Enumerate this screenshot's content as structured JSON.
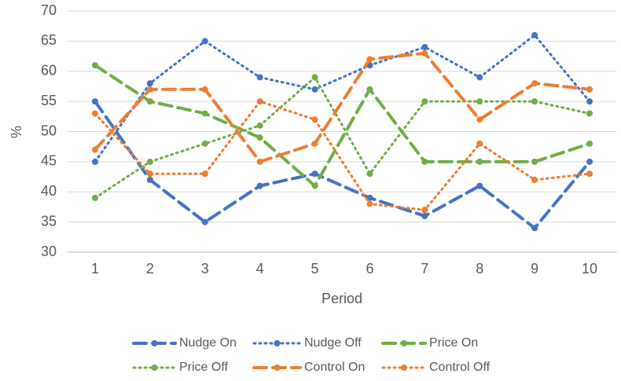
{
  "chart_data": {
    "type": "line",
    "x_label": "Period",
    "y_label": "%",
    "categories": [
      "1",
      "2",
      "3",
      "4",
      "5",
      "6",
      "7",
      "8",
      "9",
      "10"
    ],
    "series": [
      {
        "name": "Nudge On",
        "color": "#4472c4",
        "style": "dash",
        "values": [
          55,
          42,
          35,
          41,
          43,
          39,
          36,
          41,
          34,
          45
        ]
      },
      {
        "name": "Nudge Off",
        "color": "#4472c4",
        "style": "dot",
        "values": [
          45,
          58,
          65,
          59,
          57,
          61,
          64,
          59,
          66,
          55
        ]
      },
      {
        "name": "Price On",
        "color": "#70ad47",
        "style": "dash",
        "values": [
          61,
          55,
          53,
          49,
          41,
          57,
          45,
          45,
          45,
          48
        ]
      },
      {
        "name": "Price Off",
        "color": "#70ad47",
        "style": "dot",
        "values": [
          39,
          45,
          48,
          51,
          59,
          43,
          55,
          55,
          55,
          53
        ]
      },
      {
        "name": "Control On",
        "color": "#ed7d31",
        "style": "dash",
        "values": [
          47,
          57,
          57,
          45,
          48,
          62,
          63,
          52,
          58,
          57
        ]
      },
      {
        "name": "Control Off",
        "color": "#ed7d31",
        "style": "dot",
        "values": [
          53,
          43,
          43,
          55,
          52,
          38,
          37,
          48,
          42,
          43
        ]
      }
    ],
    "ylim": [
      30,
      70
    ],
    "yticks": [
      30,
      35,
      40,
      45,
      50,
      55,
      60,
      65,
      70
    ],
    "grid": true,
    "legend": "bottom"
  }
}
